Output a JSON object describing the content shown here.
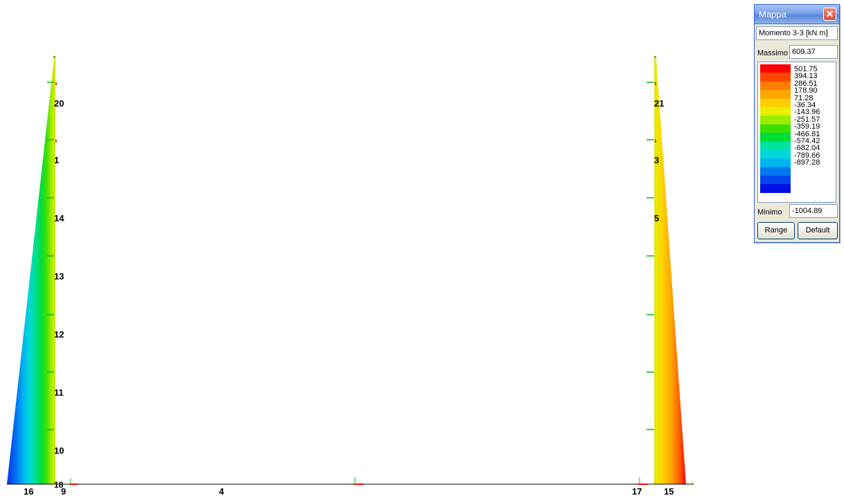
{
  "model": {
    "node_labels": [
      {
        "id": "20",
        "text": "20"
      },
      {
        "id": "1",
        "text": "1"
      },
      {
        "id": "14",
        "text": "14"
      },
      {
        "id": "13",
        "text": "13"
      },
      {
        "id": "12",
        "text": "12"
      },
      {
        "id": "11",
        "text": "11"
      },
      {
        "id": "10",
        "text": "10"
      },
      {
        "id": "18",
        "text": "18"
      },
      {
        "id": "16",
        "text": "16"
      },
      {
        "id": "9",
        "text": "9"
      },
      {
        "id": "4",
        "text": "4"
      },
      {
        "id": "21",
        "text": "21"
      },
      {
        "id": "3",
        "text": "3"
      },
      {
        "id": "5",
        "text": "5"
      },
      {
        "id": "17",
        "text": "17"
      },
      {
        "id": "15",
        "text": "15"
      }
    ]
  },
  "legend": {
    "title": "Mappa",
    "close_icon": "close-icon",
    "quantity": "Momento 3-3 [kN  m]",
    "max_label": "Massimo",
    "max_value": "609.37",
    "min_label": "Minimo",
    "min_value": "-1004.89",
    "levels": [
      "501.75",
      "394.13",
      "286.51",
      "178.90",
      "71.28",
      "-36.34",
      "-143.96",
      "-251.57",
      "-359.19",
      "-466.81",
      "-574.42",
      "-682.04",
      "-789.66",
      "-897.28"
    ],
    "colors": [
      "#ff0000",
      "#ff4600",
      "#ff7e00",
      "#ffa600",
      "#ffce00",
      "#e6f000",
      "#9cec00",
      "#38e000",
      "#00dc38",
      "#00e4a0",
      "#00d8dc",
      "#00b4f0",
      "#0078f0",
      "#0046ec",
      "#0010e4"
    ],
    "range_button": "Range",
    "default_button": "Default"
  }
}
